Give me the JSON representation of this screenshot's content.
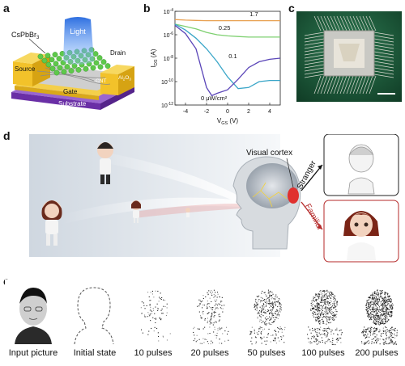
{
  "panels": {
    "a": "a",
    "b": "b",
    "c": "c",
    "d": "d",
    "e": "e"
  },
  "panel_a": {
    "material": "CsPbBr",
    "material_sub": "3",
    "light": "Light",
    "source": "Source",
    "drain": "Drain",
    "cnt": "CNT",
    "al2o3": "Al",
    "al2o3_sub": "2",
    "al2o3_tail": "O",
    "al2o3_sub2": "3",
    "gate": "Gate",
    "substrate": "Substrate"
  },
  "chart_data": {
    "type": "line",
    "xlabel": "V_GS (V)",
    "ylabel": "I_DS (A)",
    "xlim": [
      -5,
      5
    ],
    "ylim_log10": [
      -12,
      -4
    ],
    "x_ticks": [
      "-4",
      "-2",
      "0",
      "2",
      "4"
    ],
    "y_ticks": [
      "10^-4",
      "10^-6",
      "10^-8",
      "10^-10",
      "10^-12"
    ],
    "log_y": true,
    "series": [
      {
        "name": "1.7",
        "color": "#e8a050",
        "x": [
          -5,
          -4,
          -3,
          -2,
          -1,
          0,
          1,
          2,
          3,
          4,
          5
        ],
        "log10_y": [
          -4.7,
          -4.75,
          -4.78,
          -4.8,
          -4.8,
          -4.8,
          -4.8,
          -4.8,
          -4.8,
          -4.8,
          -4.8
        ]
      },
      {
        "name": "0.25",
        "color": "#7ed070",
        "x": [
          -5,
          -4,
          -3,
          -2,
          -1,
          0,
          1,
          2,
          3,
          4,
          5
        ],
        "log10_y": [
          -5.1,
          -5.3,
          -5.5,
          -5.8,
          -6.0,
          -6.1,
          -6.15,
          -6.2,
          -6.2,
          -6.2,
          -6.2
        ]
      },
      {
        "name": "0.1",
        "color": "#3aa6c8",
        "x": [
          -5,
          -4,
          -3,
          -2,
          -1,
          0,
          1,
          2,
          3,
          4,
          5
        ],
        "log10_y": [
          -5.1,
          -5.6,
          -6.3,
          -7.2,
          -8.3,
          -9.6,
          -10.6,
          -10.5,
          -10.0,
          -9.9,
          -9.9
        ]
      },
      {
        "name": "0 μW/cm²",
        "color": "#5a45b8",
        "x": [
          -5,
          -4,
          -3,
          -2,
          -1.5,
          -1,
          0,
          1,
          2,
          3,
          4,
          5
        ],
        "log10_y": [
          -5.2,
          -5.9,
          -7.2,
          -10.5,
          -11.2,
          -11.0,
          -10.7,
          -9.8,
          -8.8,
          -8.3,
          -8.1,
          -8.0
        ]
      }
    ],
    "curve_labels": [
      "1.7",
      "0.25",
      "0.1",
      "0 μW/cm²"
    ]
  },
  "panel_d": {
    "visual_cortex": "Visual cortex",
    "stranger": "Stranger",
    "familiar": "Familiar"
  },
  "panel_e": {
    "captions": [
      "Input picture",
      "Initial state",
      "10 pulses",
      "20 pulses",
      "50 pulses",
      "100 pulses",
      "200 pulses"
    ]
  },
  "colors": {
    "source_drain": "#f2c22a",
    "gate": "#f2c22a",
    "substrate": "#7a3fb5",
    "light": "#3a7ee8",
    "crystal": "#5ec94a",
    "chip_board": "#1c5a3a",
    "red_accent": "#b52a2a",
    "stranger_border": "#222222",
    "familiar_border": "#b52a2a"
  }
}
